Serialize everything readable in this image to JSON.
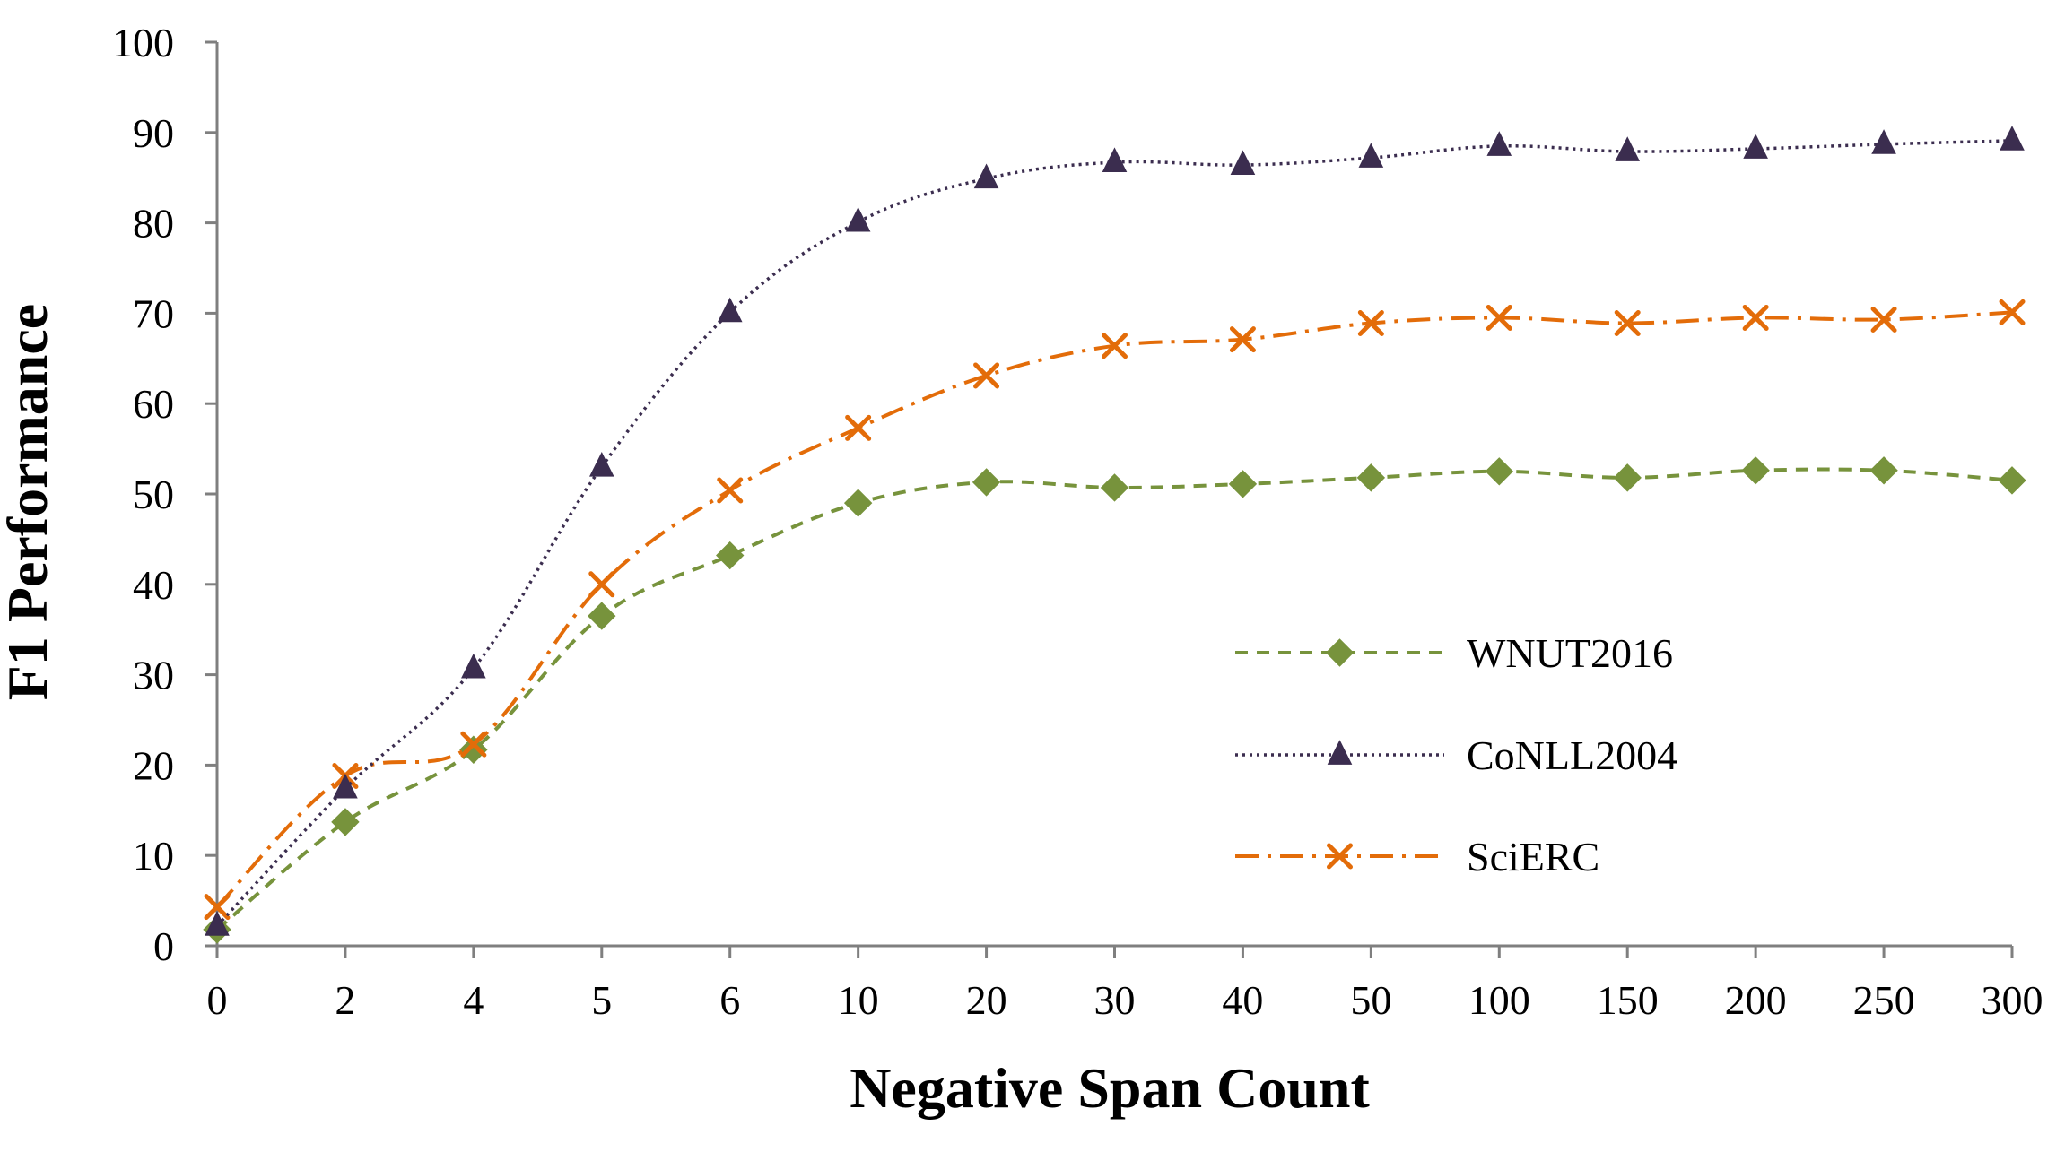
{
  "chart_data": {
    "type": "line",
    "title": "",
    "xlabel": "Negative Span Count",
    "ylabel": "F1 Performance",
    "categories": [
      "0",
      "2",
      "4",
      "5",
      "6",
      "10",
      "20",
      "30",
      "40",
      "50",
      "100",
      "150",
      "200",
      "250",
      "300"
    ],
    "ylim": [
      0,
      100
    ],
    "yticks": [
      0,
      10,
      20,
      30,
      40,
      50,
      60,
      70,
      80,
      90,
      100
    ],
    "grid": false,
    "legend_position": "bottom-right",
    "series": [
      {
        "name": "WNUT2016",
        "color": "#77933c",
        "line_style": "dashed",
        "marker": "diamond",
        "values": [
          1.8,
          13.7,
          21.7,
          36.5,
          43.2,
          49.0,
          51.3,
          50.7,
          51.1,
          51.8,
          52.5,
          51.8,
          52.6,
          52.6,
          51.5
        ]
      },
      {
        "name": "CoNLL2004",
        "color": "#3b2d4f",
        "line_style": "dotted",
        "marker": "triangle",
        "values": [
          2.2,
          17.4,
          30.7,
          53.0,
          70.1,
          80.1,
          84.9,
          86.7,
          86.4,
          87.2,
          88.5,
          87.9,
          88.2,
          88.7,
          89.1
        ]
      },
      {
        "name": "SciERC",
        "color": "#e36c09",
        "line_style": "dashdot",
        "marker": "x",
        "values": [
          4.3,
          18.8,
          22.3,
          40.0,
          50.4,
          57.3,
          63.1,
          66.4,
          67.1,
          68.9,
          69.5,
          68.9,
          69.5,
          69.3,
          70.1
        ]
      }
    ]
  }
}
